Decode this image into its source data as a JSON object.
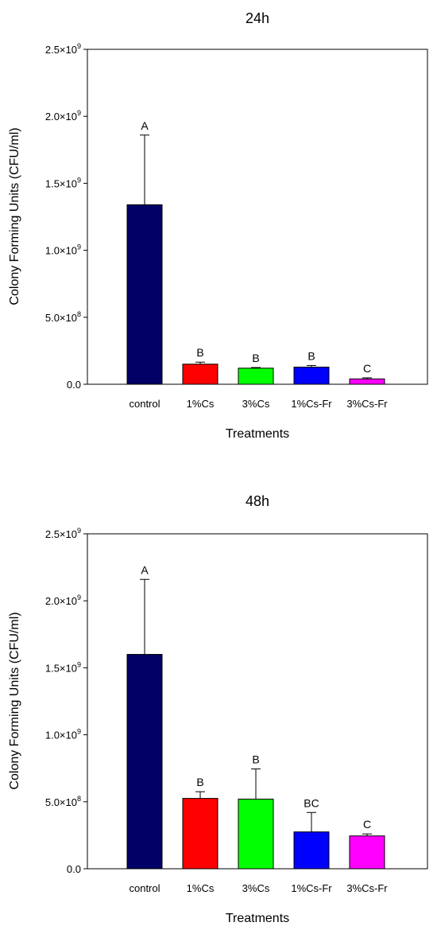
{
  "chart_data": [
    {
      "type": "bar",
      "title": "24h",
      "xlabel": "Treatments",
      "ylabel": "Colony Forming Units (CFU/ml)",
      "categories": [
        "control",
        "1%Cs",
        "3%Cs",
        "1%Cs-Fr",
        "3%Cs-Fr"
      ],
      "values": [
        1340000000,
        150000000,
        120000000,
        128000000,
        40000000
      ],
      "errors": [
        520000000,
        15000000,
        5000000,
        12000000,
        8000000
      ],
      "significance": [
        "A",
        "B",
        "B",
        "B",
        "C"
      ],
      "colors": [
        "#000066",
        "#ff0000",
        "#00ff00",
        "#0000ff",
        "#ff00ff"
      ],
      "ylim": [
        0,
        2500000000
      ],
      "yticks": [
        {
          "value": 0,
          "base": "0.0",
          "exp": ""
        },
        {
          "value": 500000000,
          "base": "5.0×10",
          "exp": "8"
        },
        {
          "value": 1000000000,
          "base": "1.0×10",
          "exp": "9"
        },
        {
          "value": 1500000000,
          "base": "1.5×10",
          "exp": "9"
        },
        {
          "value": 2000000000,
          "base": "2.0×10",
          "exp": "9"
        },
        {
          "value": 2500000000,
          "base": "2.5×10",
          "exp": "9"
        }
      ]
    },
    {
      "type": "bar",
      "title": "48h",
      "xlabel": "Treatments",
      "ylabel": "Colony Forming Units (CFU/ml)",
      "categories": [
        "control",
        "1%Cs",
        "3%Cs",
        "1%Cs-Fr",
        "3%Cs-Fr"
      ],
      "values": [
        1600000000,
        525000000,
        520000000,
        275000000,
        245000000
      ],
      "errors": [
        560000000,
        50000000,
        225000000,
        145000000,
        15000000
      ],
      "significance": [
        "A",
        "B",
        "B",
        "BC",
        "C"
      ],
      "colors": [
        "#000066",
        "#ff0000",
        "#00ff00",
        "#0000ff",
        "#ff00ff"
      ],
      "ylim": [
        0,
        2500000000
      ],
      "yticks": [
        {
          "value": 0,
          "base": "0.0",
          "exp": ""
        },
        {
          "value": 500000000,
          "base": "5.0×10",
          "exp": "8"
        },
        {
          "value": 1000000000,
          "base": "1.0×10",
          "exp": "9"
        },
        {
          "value": 1500000000,
          "base": "1.5×10",
          "exp": "9"
        },
        {
          "value": 2000000000,
          "base": "2.0×10",
          "exp": "9"
        },
        {
          "value": 2500000000,
          "base": "2.5×10",
          "exp": "9"
        }
      ]
    }
  ]
}
